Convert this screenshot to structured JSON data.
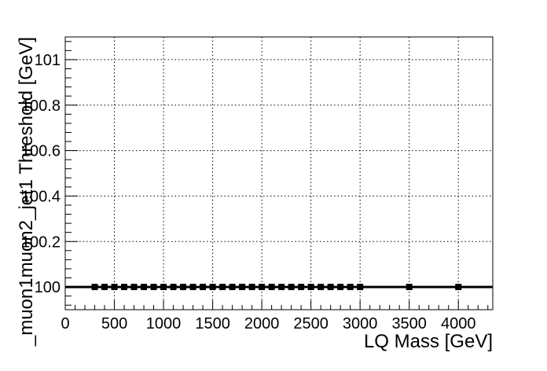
{
  "chart_data": {
    "type": "scatter",
    "title": "",
    "xlabel": "LQ Mass [GeV]",
    "ylabel": "_muon1muon2_jet1 Threshold [GeV]",
    "xlim": [
      0,
      4350
    ],
    "ylim": [
      99.9,
      101.1
    ],
    "x_ticks": [
      0,
      500,
      1000,
      1500,
      2000,
      2500,
      3000,
      3500,
      4000
    ],
    "x_tick_labels": [
      "0",
      "500",
      "1000",
      "1500",
      "2000",
      "2500",
      "3000",
      "3500",
      "4000"
    ],
    "y_ticks": [
      100,
      100.2,
      100.4,
      100.6,
      100.8,
      101
    ],
    "y_tick_labels": [
      "100",
      "100.2",
      "100.4",
      "100.6",
      "100.8",
      "101"
    ],
    "grid": true,
    "line_x_range": [
      0,
      4350
    ],
    "series": [
      {
        "x": [
          300,
          400,
          500,
          600,
          700,
          800,
          900,
          1000,
          1100,
          1200,
          1300,
          1400,
          1500,
          1600,
          1700,
          1800,
          1900,
          2000,
          2100,
          2200,
          2300,
          2400,
          2500,
          2600,
          2700,
          2800,
          2900,
          3000,
          3500,
          4000
        ],
        "y": [
          100,
          100,
          100,
          100,
          100,
          100,
          100,
          100,
          100,
          100,
          100,
          100,
          100,
          100,
          100,
          100,
          100,
          100,
          100,
          100,
          100,
          100,
          100,
          100,
          100,
          100,
          100,
          100,
          100,
          100
        ]
      }
    ],
    "colors": {
      "marker": "#000000",
      "line": "#000000",
      "grid": "#000000"
    }
  }
}
